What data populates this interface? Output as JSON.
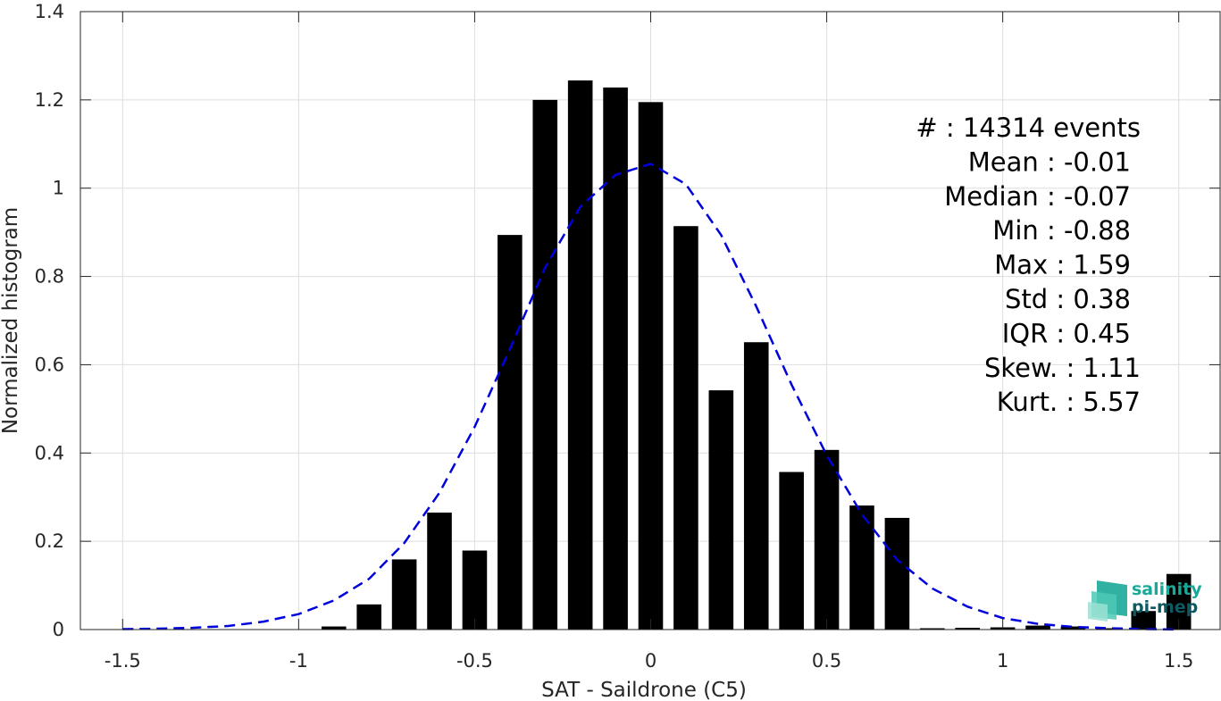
{
  "chart_data": {
    "type": "bar",
    "xlabel": "SAT - Saildrone (C5)",
    "ylabel": "Normalized histogram",
    "xlim": [
      -1.62,
      1.62
    ],
    "ylim": [
      0,
      1.4
    ],
    "xticks": [
      -1.5,
      -1,
      -0.5,
      0,
      0.5,
      1,
      1.5
    ],
    "xtick_labels": [
      "-1.5",
      "-1",
      "-0.5",
      "0",
      "0.5",
      "1",
      "1.5"
    ],
    "yticks": [
      0,
      0.2,
      0.4,
      0.6,
      0.8,
      1,
      1.2,
      1.4
    ],
    "ytick_labels": [
      "0",
      "0.2",
      "0.4",
      "0.6",
      "0.8",
      "1",
      "1.2",
      "1.4"
    ],
    "grid": true,
    "bar_color": "#000000",
    "bar_width": 0.07,
    "bins": [
      {
        "x": -0.9,
        "value": 0.007
      },
      {
        "x": -0.8,
        "value": 0.057
      },
      {
        "x": -0.7,
        "value": 0.159
      },
      {
        "x": -0.6,
        "value": 0.265
      },
      {
        "x": -0.5,
        "value": 0.179
      },
      {
        "x": -0.4,
        "value": 0.894
      },
      {
        "x": -0.3,
        "value": 1.2
      },
      {
        "x": -0.2,
        "value": 1.244
      },
      {
        "x": -0.1,
        "value": 1.228
      },
      {
        "x": 0.0,
        "value": 1.195
      },
      {
        "x": 0.1,
        "value": 0.914
      },
      {
        "x": 0.2,
        "value": 0.542
      },
      {
        "x": 0.3,
        "value": 0.651
      },
      {
        "x": 0.4,
        "value": 0.357
      },
      {
        "x": 0.5,
        "value": 0.407
      },
      {
        "x": 0.6,
        "value": 0.281
      },
      {
        "x": 0.7,
        "value": 0.253
      },
      {
        "x": 0.8,
        "value": 0.003
      },
      {
        "x": 0.9,
        "value": 0.004
      },
      {
        "x": 1.0,
        "value": 0.005
      },
      {
        "x": 1.1,
        "value": 0.009
      },
      {
        "x": 1.2,
        "value": 0.007
      },
      {
        "x": 1.3,
        "value": 0.003
      },
      {
        "x": 1.4,
        "value": 0.042
      },
      {
        "x": 1.5,
        "value": 0.126
      }
    ],
    "gaussian_fit": {
      "color": "#0000dd",
      "style": "dashed",
      "x": [
        -1.5,
        -1.4,
        -1.3,
        -1.2,
        -1.1,
        -1.0,
        -0.9,
        -0.8,
        -0.7,
        -0.6,
        -0.5,
        -0.4,
        -0.3,
        -0.2,
        -0.1,
        0.0,
        0.1,
        0.2,
        0.3,
        0.4,
        0.5,
        0.6,
        0.7,
        0.8,
        0.9,
        1.0,
        1.1,
        1.2,
        1.3,
        1.4,
        1.5
      ],
      "y": [
        0.001,
        0.002,
        0.004,
        0.008,
        0.018,
        0.035,
        0.066,
        0.115,
        0.196,
        0.31,
        0.459,
        0.635,
        0.82,
        0.958,
        1.03,
        1.055,
        1.009,
        0.894,
        0.732,
        0.555,
        0.395,
        0.261,
        0.158,
        0.093,
        0.052,
        0.026,
        0.013,
        0.006,
        0.003,
        0.001,
        0.0
      ]
    },
    "annotations": [
      {
        "label": "#  : 14314 events",
        "align": "right-wide"
      },
      {
        "label": "Mean : -0.01",
        "align": "right"
      },
      {
        "label": "Median : -0.07",
        "align": "right"
      },
      {
        "label": "Min : -0.88",
        "align": "right"
      },
      {
        "label": "Max : 1.59",
        "align": "right"
      },
      {
        "label": "Std : 0.38",
        "align": "right"
      },
      {
        "label": "IQR : 0.45",
        "align": "right"
      },
      {
        "label": "Skew. : 1.11",
        "align": "right-wide"
      },
      {
        "label": "Kurt. : 5.57",
        "align": "right-wide"
      }
    ]
  },
  "logo": {
    "line1": "salinity",
    "line2": "pi-mep",
    "color_top": "#1aa898",
    "color_bottom": "#0d5a63"
  }
}
